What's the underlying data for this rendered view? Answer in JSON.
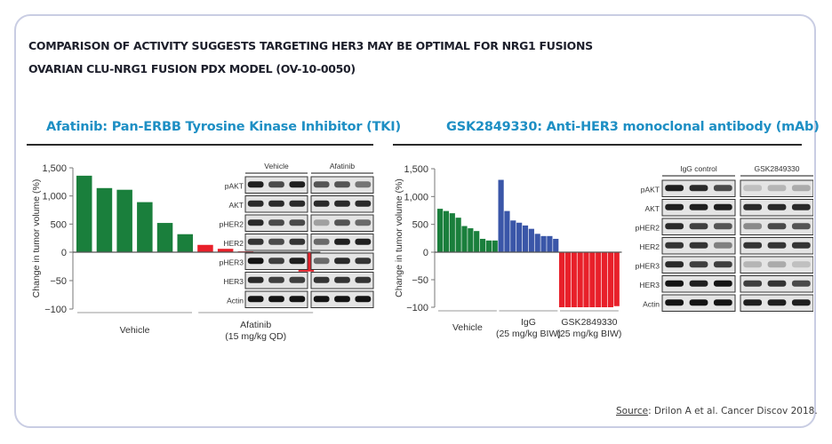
{
  "header": {
    "title": "COMPARISON OF ACTIVITY SUGGESTS TARGETING HER3 MAY BE OPTIMAL FOR NRG1 FUSIONS",
    "subtitle": "OVARIAN CLU-NRG1 FUSION PDX MODEL (OV-10-0050)"
  },
  "colors": {
    "accent_title": "#1e8fc4",
    "vehicle": "#1a7f3c",
    "treatment_red": "#e8202a",
    "igg": "#3a56a8"
  },
  "left_panel": {
    "section_title": "Afatinib: Pan-ERBB Tyrosine Kinase Inhibitor (TKI)",
    "blot": {
      "groups": [
        "Vehicle",
        "Afatinib"
      ],
      "rows": [
        "pAKT",
        "AKT",
        "pHER2",
        "HER2",
        "pHER3",
        "HER3",
        "Actin"
      ]
    }
  },
  "right_panel": {
    "section_title": "GSK2849330: Anti-HER3 monoclonal antibody (mAb)",
    "blot": {
      "groups": [
        "IgG control",
        "GSK2849330"
      ],
      "rows": [
        "pAKT",
        "AKT",
        "pHER2",
        "HER2",
        "pHER3",
        "HER3",
        "Actin"
      ]
    }
  },
  "footer": {
    "source_label": "Source",
    "source_text": ": Drilon A et al. Cancer Discov 2018."
  },
  "chart_data": [
    {
      "type": "bar",
      "title": "Afatinib: Pan-ERBB Tyrosine Kinase Inhibitor (TKI)",
      "ylabel": "Change in tumor volume (%)",
      "xlabel": "",
      "y_scale": "split: 0 to 1,500 above zero, 0 to -100 below zero",
      "yticks": [
        "1,500",
        "1,000",
        "500",
        "0",
        "−50",
        "−100"
      ],
      "ytick_values": [
        1500,
        1000,
        500,
        0,
        -50,
        -100
      ],
      "ylim": [
        -100,
        1500
      ],
      "grid": false,
      "series": [
        {
          "name": "Vehicle",
          "label": "Vehicle",
          "color": "#1a7f3c",
          "values": [
            1360,
            1140,
            1110,
            890,
            520,
            320
          ]
        },
        {
          "name": "Afatinib",
          "label": "Afatinib\n(15 mg/kg QD)",
          "color": "#e8202a",
          "values": [
            130,
            60,
            15,
            -8,
            -15,
            -34
          ]
        }
      ],
      "group_labels": [
        {
          "line1": "Vehicle",
          "line2": ""
        },
        {
          "line1": "Afatinib",
          "line2": "(15 mg/kg QD)"
        }
      ]
    },
    {
      "type": "bar",
      "title": "GSK2849330: Anti-HER3 monoclonal antibody (mAb)",
      "ylabel": "Change in tumor volume (%)",
      "xlabel": "",
      "y_scale": "split: 0 to 1,500 above zero, 0 to -100 below zero",
      "yticks": [
        "1,500",
        "1,000",
        "500",
        "0",
        "−50",
        "−100"
      ],
      "ytick_values": [
        1500,
        1000,
        500,
        0,
        -50,
        -100
      ],
      "ylim": [
        -100,
        1500
      ],
      "grid": false,
      "series": [
        {
          "name": "Vehicle",
          "label": "Vehicle",
          "color": "#1a7f3c",
          "values": [
            780,
            740,
            700,
            620,
            470,
            430,
            380,
            240,
            210,
            210
          ]
        },
        {
          "name": "IgG",
          "label": "IgG\n(25 mg/kg BIW)",
          "color": "#3a56a8",
          "values": [
            1300,
            740,
            570,
            530,
            480,
            420,
            330,
            290,
            290,
            240
          ]
        },
        {
          "name": "GSK2849330",
          "label": "GSK2849330\n(25 mg/kg BIW)",
          "color": "#e8202a",
          "values": [
            -100,
            -100,
            -100,
            -100,
            -100,
            -100,
            -100,
            -100,
            -100,
            -98
          ]
        }
      ],
      "group_labels": [
        {
          "line1": "Vehicle",
          "line2": ""
        },
        {
          "line1": "IgG",
          "line2": "(25 mg/kg BIW)"
        },
        {
          "line1": "GSK2849330",
          "line2": "(25 mg/kg BIW)"
        }
      ]
    }
  ]
}
